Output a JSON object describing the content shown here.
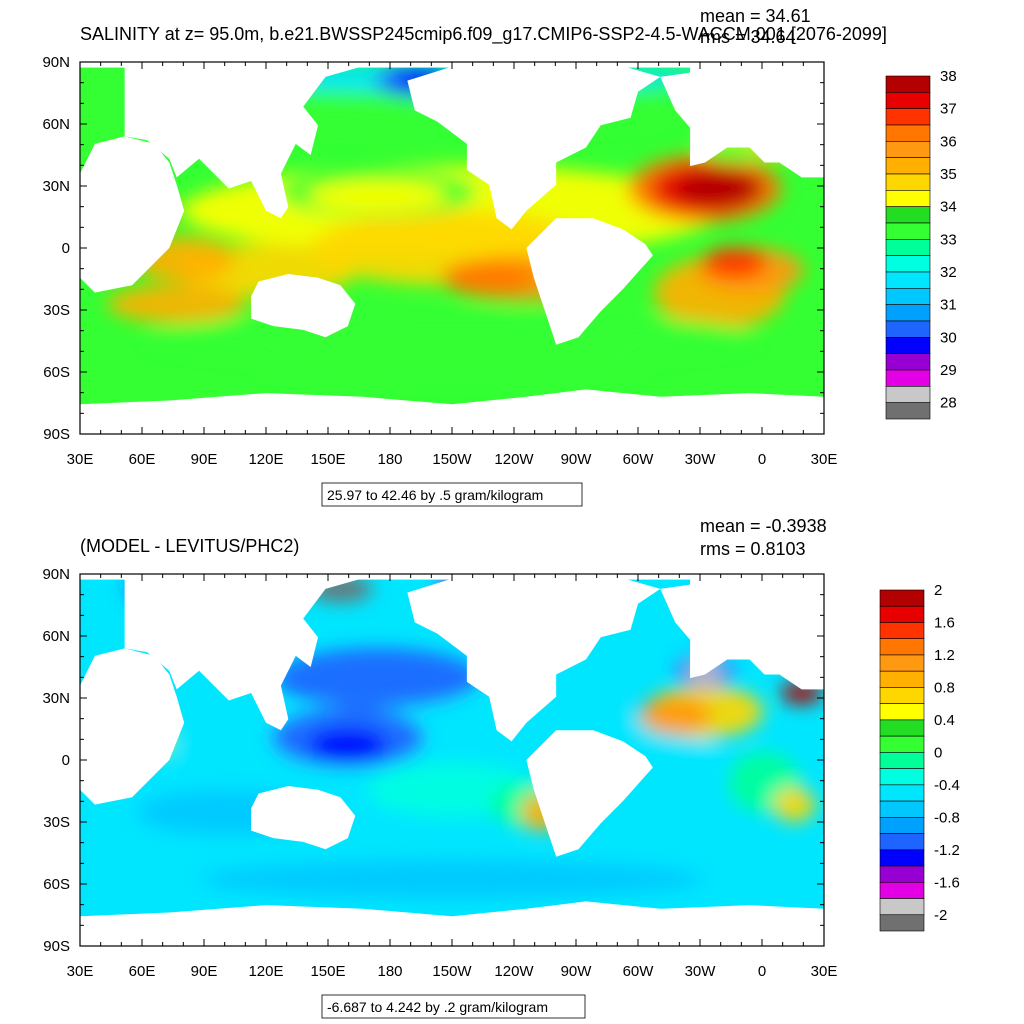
{
  "chart_data": [
    {
      "type": "heatmap",
      "title": "SALINITY at z=  95.0m, b.e21.BWSSP245cmip6.f09_g17.CMIP6-SSP2-4.5-WACCM.001 [2076-2099]",
      "stats": [
        "mean = 34.61",
        "rms = 34.64"
      ],
      "lat_ticks": [
        "90N",
        "60N",
        "30N",
        "0",
        "30S",
        "60S",
        "90S"
      ],
      "lon_ticks": [
        "30E",
        "60E",
        "90E",
        "120E",
        "150E",
        "180",
        "150W",
        "120W",
        "90W",
        "60W",
        "30W",
        "0",
        "30E"
      ],
      "ylim": [
        -90,
        90
      ],
      "xlim": [
        30,
        390
      ],
      "levels": [
        28,
        28.5,
        29,
        29.5,
        30,
        30.5,
        31,
        31.5,
        32,
        32.5,
        33,
        33.5,
        34,
        34.5,
        35,
        35.5,
        36,
        36.5,
        37,
        37.5,
        38
      ],
      "colors": [
        "#707070",
        "#c8c8c8",
        "#e400e4",
        "#9600d2",
        "#0000ff",
        "#1e64ff",
        "#00a0ff",
        "#00c8ff",
        "#00e6ff",
        "#00ffe0",
        "#00ff99",
        "#33ff33",
        "#22dd22",
        "#ffff00",
        "#ffd700",
        "#ffb000",
        "#ff9911",
        "#ff7700",
        "#ff3300",
        "#e60000",
        "#b30000"
      ],
      "colorbar_labels": [
        "38",
        "37",
        "36",
        "35",
        "34",
        "33",
        "32",
        "31",
        "30",
        "29",
        "28"
      ],
      "range_label": "25.97 to 42.46 by .5 gram/kilogram"
    },
    {
      "type": "heatmap",
      "title": "(MODEL - LEVITUS/PHC2)",
      "stats": [
        "mean = -0.3938",
        "rms = 0.8103"
      ],
      "lat_ticks": [
        "90N",
        "60N",
        "30N",
        "0",
        "30S",
        "60S",
        "90S"
      ],
      "lon_ticks": [
        "30E",
        "60E",
        "90E",
        "120E",
        "150E",
        "180",
        "150W",
        "120W",
        "90W",
        "60W",
        "30W",
        "0",
        "30E"
      ],
      "ylim": [
        -90,
        90
      ],
      "xlim": [
        30,
        390
      ],
      "levels": [
        -2,
        -1.8,
        -1.6,
        -1.4,
        -1.2,
        -1,
        -0.8,
        -0.6,
        -0.4,
        -0.2,
        0,
        0.2,
        0.4,
        0.6,
        0.8,
        1,
        1.2,
        1.4,
        1.6,
        1.8,
        2
      ],
      "colors": [
        "#707070",
        "#c8c8c8",
        "#e400e4",
        "#9600d2",
        "#0000ff",
        "#1e64ff",
        "#00a0ff",
        "#00c8ff",
        "#00e6ff",
        "#00ffe0",
        "#00ff99",
        "#33ff33",
        "#22dd22",
        "#ffff00",
        "#ffd700",
        "#ffb000",
        "#ff9911",
        "#ff7700",
        "#ff3300",
        "#e60000",
        "#b30000"
      ],
      "colorbar_labels": [
        "2",
        "1.6",
        "1.2",
        "0.8",
        "0.4",
        "0",
        "-0.4",
        "-0.8",
        "-1.2",
        "-1.6",
        "-2"
      ],
      "range_label": "-6.687 to 4.242 by .2 gram/kilogram"
    }
  ]
}
